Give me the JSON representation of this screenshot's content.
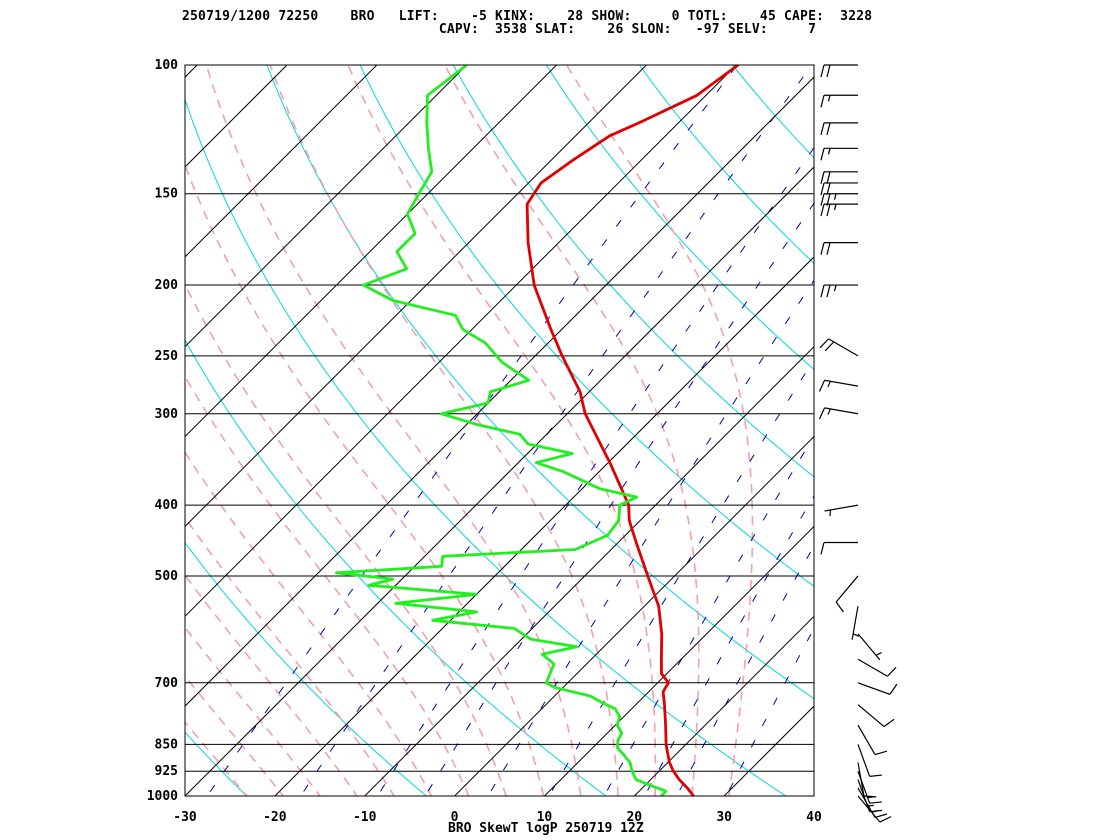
{
  "header": {
    "line1": "250719/1200 72250    BRO   LIFT:    -5 KINX:    28 SHOW:     0 TOTL:    45 CAPE:  3228",
    "line2": "                                CAPV:  3538 SLAT:    26 SLON:   -97 SELV:     7"
  },
  "footer": "BRO SkewT logP 250719 12Z",
  "colors": {
    "temperature": "#e00000",
    "dewpoint": "#22ee22",
    "isotherm": "#000000",
    "isobar": "#000000",
    "dry_adiabat": "#00d8e0",
    "moist_adiabat": "#f4a0a8",
    "mixing_ratio": "#0000b0",
    "wind_barb": "#000000"
  },
  "chart_data": {
    "type": "skew-t log-p",
    "station": "BRO",
    "xlabel": "",
    "ylabel": "",
    "xlim": [
      -30,
      40
    ],
    "ylim": [
      1000,
      100
    ],
    "pressure_levels": [
      100,
      150,
      200,
      250,
      300,
      400,
      500,
      700,
      850,
      925,
      1000
    ],
    "temperature_ticks": [
      -30,
      -20,
      -10,
      0,
      10,
      20,
      30,
      40
    ],
    "series": [
      {
        "name": "temperature",
        "points": [
          {
            "p": 1000,
            "t": 26.6
          },
          {
            "p": 975,
            "t": 25.0
          },
          {
            "p": 950,
            "t": 23.2
          },
          {
            "p": 925,
            "t": 21.6
          },
          {
            "p": 900,
            "t": 20.2
          },
          {
            "p": 875,
            "t": 19.0
          },
          {
            "p": 850,
            "t": 17.8
          },
          {
            "p": 800,
            "t": 15.6
          },
          {
            "p": 750,
            "t": 13.2
          },
          {
            "p": 720,
            "t": 11.6
          },
          {
            "p": 700,
            "t": 11.2
          },
          {
            "p": 680,
            "t": 9.4
          },
          {
            "p": 650,
            "t": 7.8
          },
          {
            "p": 600,
            "t": 5.0
          },
          {
            "p": 550,
            "t": 1.6
          },
          {
            "p": 500,
            "t": -3.0
          },
          {
            "p": 450,
            "t": -8.0
          },
          {
            "p": 420,
            "t": -11.2
          },
          {
            "p": 400,
            "t": -13.0
          },
          {
            "p": 350,
            "t": -19.8
          },
          {
            "p": 300,
            "t": -28.0
          },
          {
            "p": 280,
            "t": -31.0
          },
          {
            "p": 250,
            "t": -37.0
          },
          {
            "p": 230,
            "t": -41.2
          },
          {
            "p": 200,
            "t": -48.0
          },
          {
            "p": 175,
            "t": -53.4
          },
          {
            "p": 155,
            "t": -57.8
          },
          {
            "p": 145,
            "t": -58.6
          },
          {
            "p": 135,
            "t": -57.6
          },
          {
            "p": 125,
            "t": -56.2
          },
          {
            "p": 120,
            "t": -54.4
          },
          {
            "p": 110,
            "t": -51.0
          },
          {
            "p": 100,
            "t": -49.8
          }
        ]
      },
      {
        "name": "dewpoint",
        "points": [
          {
            "p": 1000,
            "t": 23.0
          },
          {
            "p": 985,
            "t": 23.0
          },
          {
            "p": 970,
            "t": 21.0
          },
          {
            "p": 950,
            "t": 18.4
          },
          {
            "p": 925,
            "t": 17.0
          },
          {
            "p": 900,
            "t": 15.8
          },
          {
            "p": 875,
            "t": 14.0
          },
          {
            "p": 860,
            "t": 12.8
          },
          {
            "p": 840,
            "t": 12.0
          },
          {
            "p": 820,
            "t": 11.6
          },
          {
            "p": 800,
            "t": 10.2
          },
          {
            "p": 780,
            "t": 9.6
          },
          {
            "p": 760,
            "t": 8.2
          },
          {
            "p": 745,
            "t": 6.0
          },
          {
            "p": 730,
            "t": 4.0
          },
          {
            "p": 710,
            "t": -1.0
          },
          {
            "p": 700,
            "t": -2.4
          },
          {
            "p": 660,
            "t": -3.6
          },
          {
            "p": 640,
            "t": -6.0
          },
          {
            "p": 625,
            "t": -3.0
          },
          {
            "p": 610,
            "t": -9.0
          },
          {
            "p": 590,
            "t": -12.0
          },
          {
            "p": 575,
            "t": -22.0
          },
          {
            "p": 560,
            "t": -18.0
          },
          {
            "p": 545,
            "t": -28.0
          },
          {
            "p": 530,
            "t": -20.0
          },
          {
            "p": 515,
            "t": -33.0
          },
          {
            "p": 505,
            "t": -31.0
          },
          {
            "p": 495,
            "t": -38.0
          },
          {
            "p": 485,
            "t": -27.0
          },
          {
            "p": 470,
            "t": -28.0
          },
          {
            "p": 460,
            "t": -14.0
          },
          {
            "p": 440,
            "t": -12.0
          },
          {
            "p": 420,
            "t": -12.4
          },
          {
            "p": 400,
            "t": -14.0
          },
          {
            "p": 390,
            "t": -13.0
          },
          {
            "p": 380,
            "t": -18.0
          },
          {
            "p": 360,
            "t": -24.0
          },
          {
            "p": 350,
            "t": -28.0
          },
          {
            "p": 340,
            "t": -25.0
          },
          {
            "p": 330,
            "t": -31.0
          },
          {
            "p": 320,
            "t": -33.0
          },
          {
            "p": 310,
            "t": -39.0
          },
          {
            "p": 300,
            "t": -44.0
          },
          {
            "p": 290,
            "t": -40.0
          },
          {
            "p": 280,
            "t": -41.0
          },
          {
            "p": 270,
            "t": -38.0
          },
          {
            "p": 255,
            "t": -43.0
          },
          {
            "p": 240,
            "t": -47.0
          },
          {
            "p": 230,
            "t": -51.0
          },
          {
            "p": 220,
            "t": -53.4
          },
          {
            "p": 210,
            "t": -62.0
          },
          {
            "p": 200,
            "t": -67.0
          },
          {
            "p": 190,
            "t": -64.0
          },
          {
            "p": 180,
            "t": -67.0
          },
          {
            "p": 170,
            "t": -67.0
          },
          {
            "p": 160,
            "t": -70.0
          },
          {
            "p": 150,
            "t": -71.0
          },
          {
            "p": 140,
            "t": -72.0
          },
          {
            "p": 130,
            "t": -75.0
          },
          {
            "p": 120,
            "t": -78.0
          },
          {
            "p": 110,
            "t": -81.0
          },
          {
            "p": 100,
            "t": -80.0
          }
        ]
      }
    ],
    "wind_barbs": {
      "units": "knots",
      "levels": [
        {
          "p": 1000,
          "dir": 140,
          "spd": 10
        },
        {
          "p": 975,
          "dir": 150,
          "spd": 15
        },
        {
          "p": 950,
          "dir": 160,
          "spd": 15
        },
        {
          "p": 925,
          "dir": 160,
          "spd": 15
        },
        {
          "p": 900,
          "dir": 170,
          "spd": 10
        },
        {
          "p": 850,
          "dir": 160,
          "spd": 10
        },
        {
          "p": 800,
          "dir": 150,
          "spd": 10
        },
        {
          "p": 750,
          "dir": 130,
          "spd": 10
        },
        {
          "p": 700,
          "dir": 110,
          "spd": 10
        },
        {
          "p": 650,
          "dir": 120,
          "spd": 10
        },
        {
          "p": 600,
          "dir": 140,
          "spd": 5
        },
        {
          "p": 550,
          "dir": 190,
          "spd": 5
        },
        {
          "p": 500,
          "dir": 220,
          "spd": 10
        },
        {
          "p": 450,
          "dir": 270,
          "spd": 10
        },
        {
          "p": 400,
          "dir": 260,
          "spd": 5
        },
        {
          "p": 300,
          "dir": 280,
          "spd": 15
        },
        {
          "p": 275,
          "dir": 280,
          "spd": 15
        },
        {
          "p": 250,
          "dir": 300,
          "spd": 20
        },
        {
          "p": 200,
          "dir": 270,
          "spd": 25
        },
        {
          "p": 175,
          "dir": 270,
          "spd": 20
        },
        {
          "p": 155,
          "dir": 270,
          "spd": 25
        },
        {
          "p": 150,
          "dir": 270,
          "spd": 25
        },
        {
          "p": 145,
          "dir": 270,
          "spd": 20
        },
        {
          "p": 140,
          "dir": 270,
          "spd": 20
        },
        {
          "p": 130,
          "dir": 270,
          "spd": 15
        },
        {
          "p": 120,
          "dir": 270,
          "spd": 20
        },
        {
          "p": 110,
          "dir": 270,
          "spd": 15
        },
        {
          "p": 100,
          "dir": 270,
          "spd": 20
        }
      ]
    },
    "grid": true,
    "legend": "none"
  }
}
